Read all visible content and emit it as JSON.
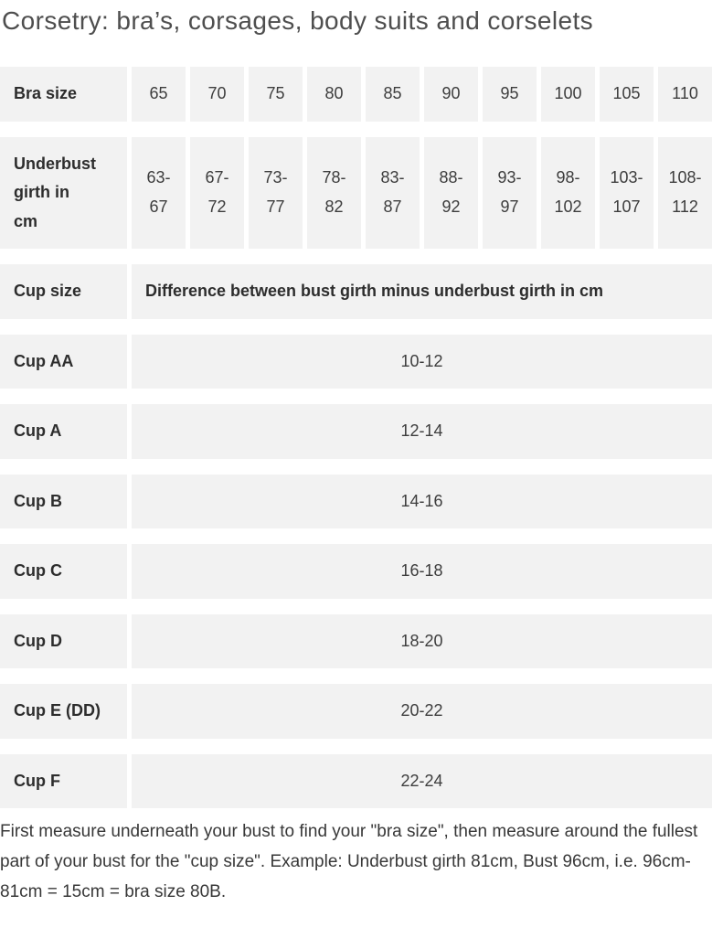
{
  "page": {
    "title": "Corsetry: bra’s, corsages, body suits and corselets",
    "instructions": "First measure underneath your bust to find your \"bra size\", then measure around the fullest part of your bust for the \"cup size\". Example: Underbust girth 81cm, Bust 96cm, i.e. 96cm-81cm = 15cm = bra size 80B."
  },
  "table": {
    "bra_size_row": {
      "label": "Bra size",
      "values": [
        "65",
        "70",
        "75",
        "80",
        "85",
        "90",
        "95",
        "100",
        "105",
        "110"
      ]
    },
    "underbust_row": {
      "label": "Underbust girth in cm",
      "values": [
        "63-67",
        "67-72",
        "73-77",
        "78-82",
        "83-87",
        "88-92",
        "93-97",
        "98-102",
        "103-107",
        "108-112"
      ]
    },
    "cup_header_row": {
      "label": "Cup size",
      "description": "Difference between bust girth minus underbust girth in cm"
    },
    "cup_rows": [
      {
        "label": "Cup AA",
        "value": "10-12"
      },
      {
        "label": "Cup A",
        "value": "12-14"
      },
      {
        "label": "Cup B",
        "value": "14-16"
      },
      {
        "label": "Cup C",
        "value": "16-18"
      },
      {
        "label": "Cup D",
        "value": "18-20"
      },
      {
        "label": "Cup E (DD)",
        "value": "20-22"
      },
      {
        "label": "Cup F",
        "value": "22-24"
      }
    ]
  },
  "colors": {
    "cell_background": "#f2f2f2",
    "label_text": "#2d2d2d",
    "body_text": "#3d3d3d",
    "title_text": "#4e4e4e",
    "gutter": "#ffffff"
  }
}
